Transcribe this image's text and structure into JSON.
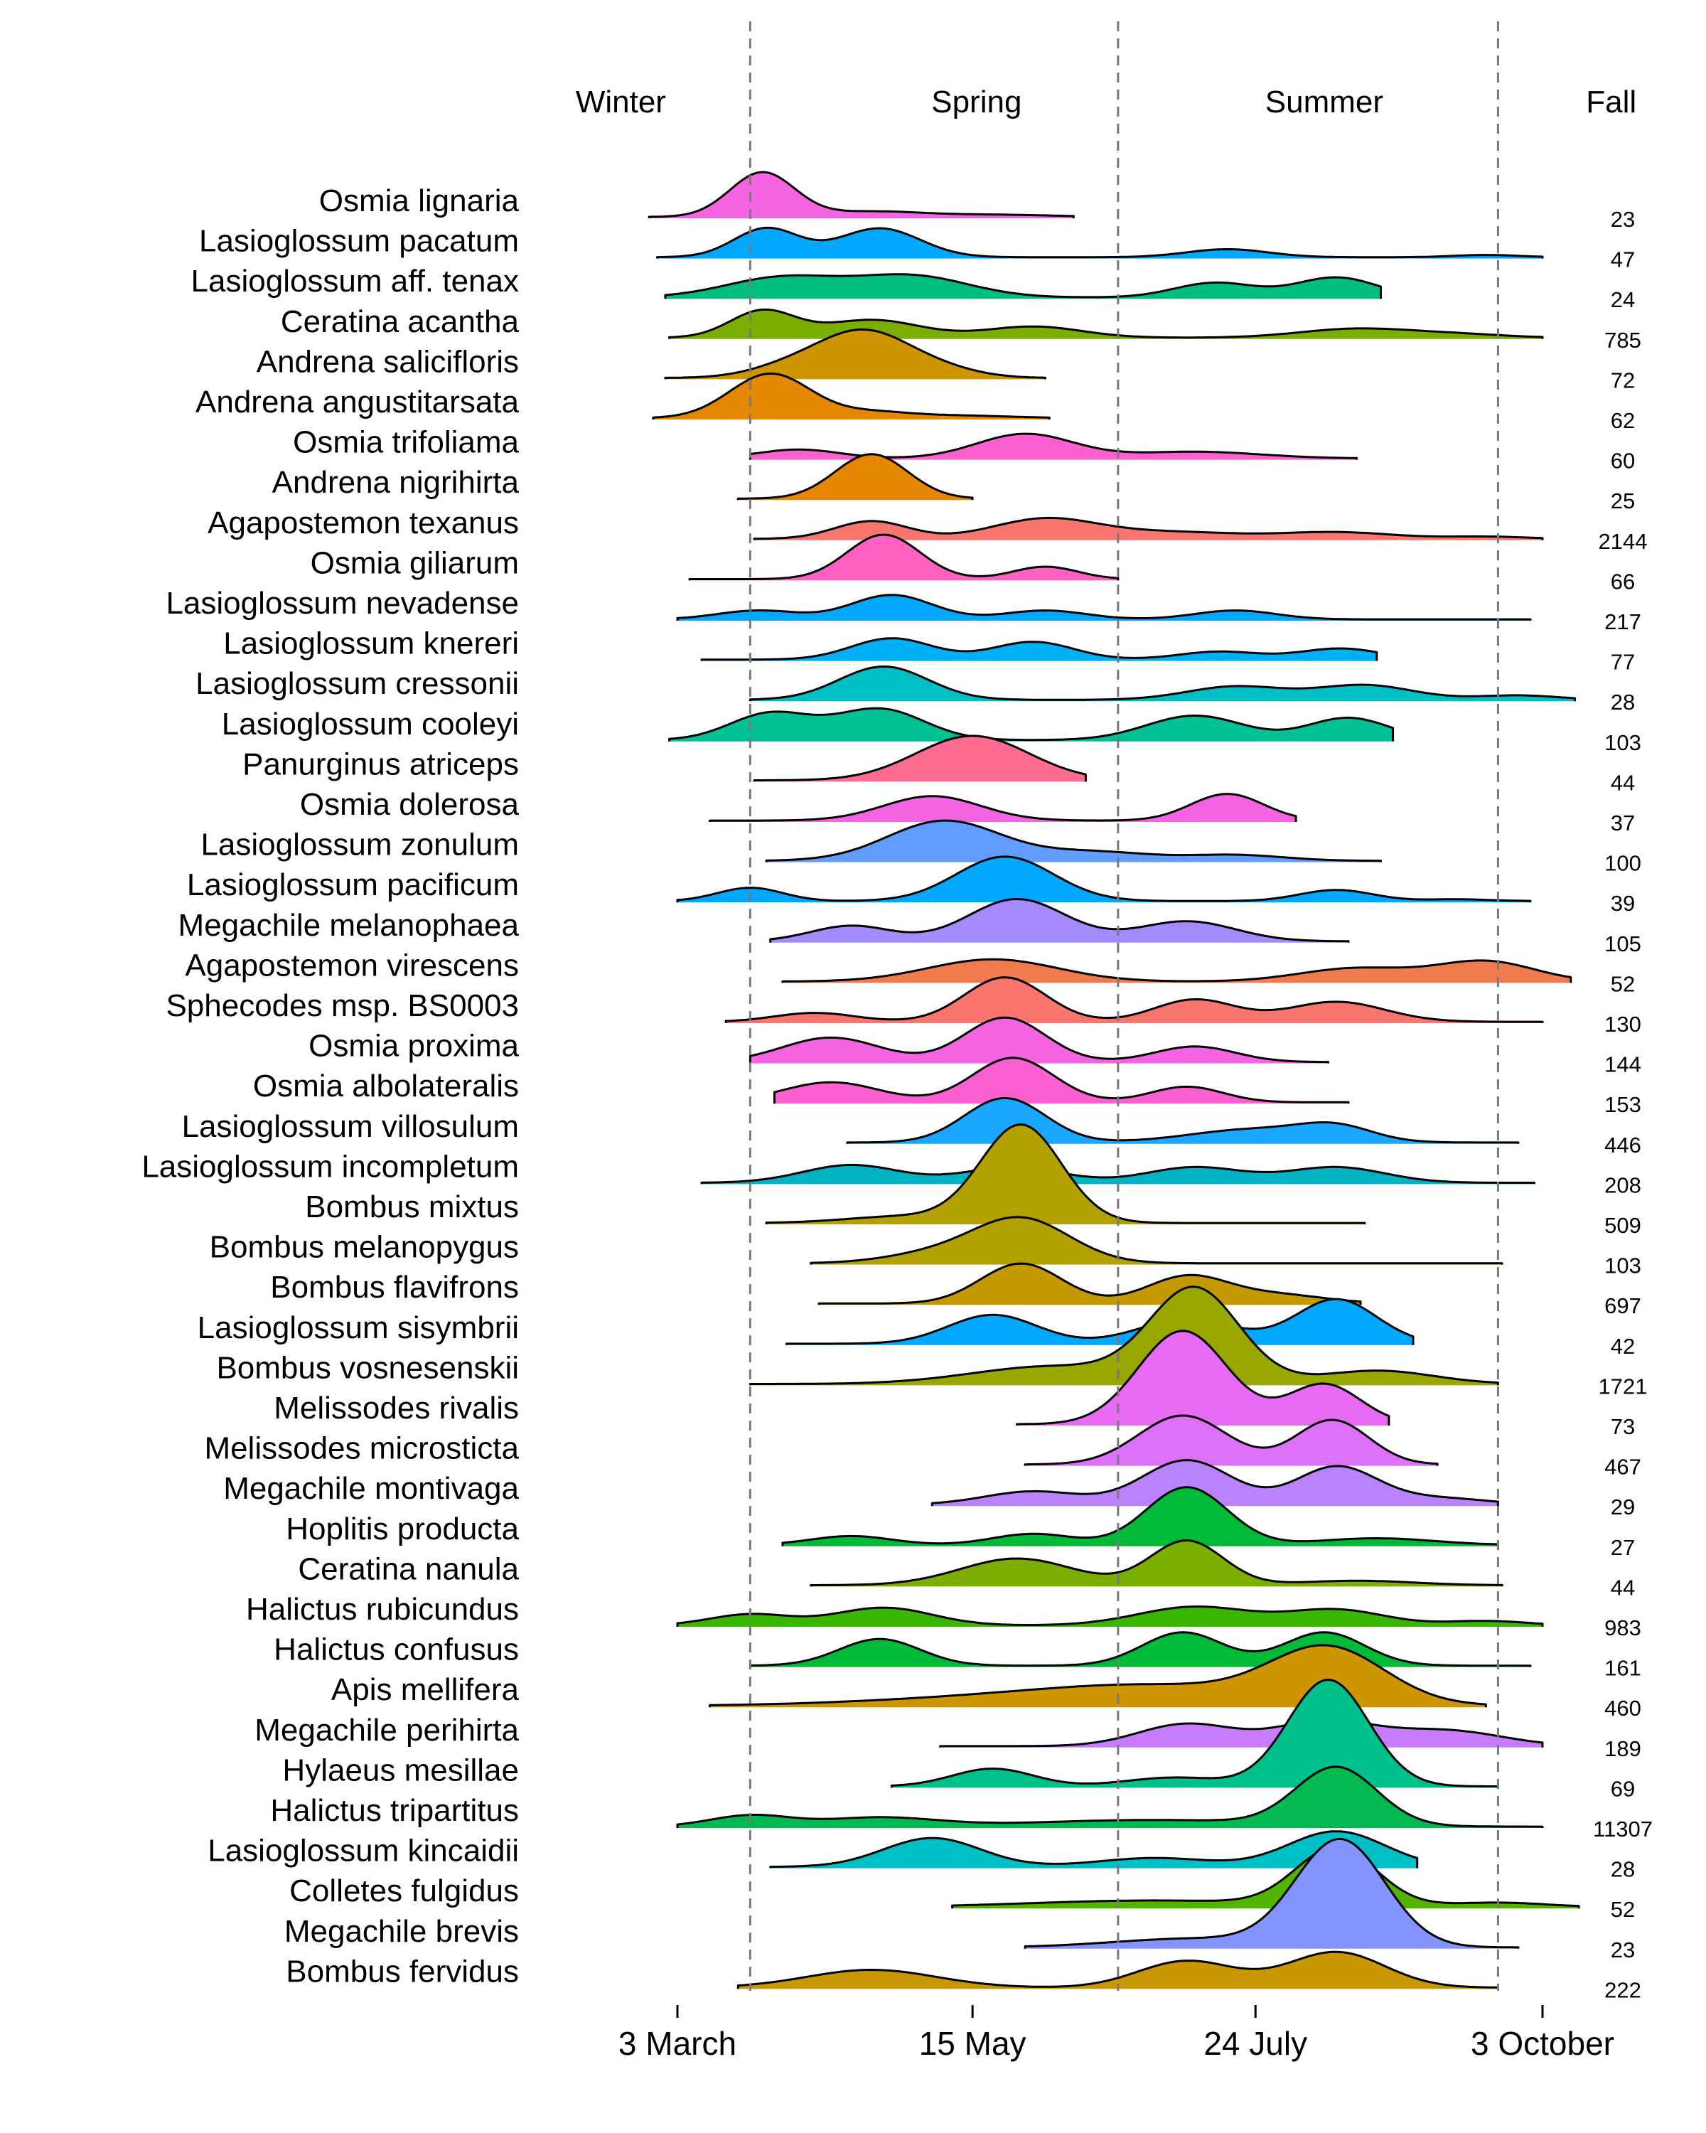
{
  "chart_data": {
    "type": "ridgeline",
    "x_axis": {
      "ticks": [
        {
          "day": 62,
          "label": "3 March"
        },
        {
          "day": 135,
          "label": "15 May"
        },
        {
          "day": 205,
          "label": "24 July"
        },
        {
          "day": 276,
          "label": "3 October"
        }
      ],
      "range_days": [
        62,
        276
      ]
    },
    "season_boundaries_day": [
      80,
      171,
      265
    ],
    "seasons": [
      {
        "name": "Winter",
        "day": 48
      },
      {
        "name": "Spring",
        "day": 136
      },
      {
        "name": "Summer",
        "day": 222
      },
      {
        "name": "Fall",
        "day": 293
      }
    ],
    "species": [
      {
        "name": "Osmia lignaria",
        "n": "23",
        "color": "#F564E3",
        "range": [
          55,
          160
        ],
        "peaks": [
          [
            83,
            8,
            1.0
          ],
          [
            110,
            12,
            0.12
          ],
          [
            140,
            15,
            0.05
          ]
        ]
      },
      {
        "name": "Lasioglossum pacatum",
        "n": "47",
        "color": "#00A9FF",
        "range": [
          57,
          276
        ],
        "peaks": [
          [
            84,
            8,
            0.65
          ],
          [
            112,
            10,
            0.65
          ],
          [
            198,
            10,
            0.18
          ],
          [
            262,
            8,
            0.05
          ]
        ]
      },
      {
        "name": "Lasioglossum aff. tenax",
        "n": "24",
        "color": "#00BF7D",
        "range": [
          59,
          236
        ],
        "peaks": [
          [
            88,
            14,
            0.45
          ],
          [
            120,
            14,
            0.48
          ],
          [
            195,
            10,
            0.33
          ],
          [
            225,
            10,
            0.45
          ]
        ]
      },
      {
        "name": "Ceratina acantha",
        "n": "785",
        "color": "#7CAE00",
        "range": [
          60,
          276
        ],
        "peaks": [
          [
            83,
            8,
            0.6
          ],
          [
            110,
            12,
            0.4
          ],
          [
            150,
            12,
            0.25
          ],
          [
            230,
            14,
            0.2
          ],
          [
            255,
            12,
            0.07
          ]
        ]
      },
      {
        "name": "Andrena salicifloris",
        "n": "72",
        "color": "#CD9600",
        "range": [
          59,
          153
        ],
        "peaks": [
          [
            90,
            10,
            0.25
          ],
          [
            108,
            11,
            1.0
          ],
          [
            126,
            10,
            0.2
          ]
        ]
      },
      {
        "name": "Andrena angustitarsata",
        "n": "62",
        "color": "#E58700",
        "range": [
          56,
          154
        ],
        "peaks": [
          [
            85,
            10,
            1.0
          ],
          [
            110,
            9,
            0.12
          ],
          [
            130,
            14,
            0.06
          ]
        ]
      },
      {
        "name": "Osmia trifoliama",
        "n": "60",
        "color": "#FD61D1",
        "range": [
          80,
          230
        ],
        "peaks": [
          [
            92,
            10,
            0.2
          ],
          [
            148,
            12,
            0.55
          ],
          [
            190,
            16,
            0.15
          ]
        ]
      },
      {
        "name": "Andrena nigrihirta",
        "n": "25",
        "color": "#E58700",
        "range": [
          77,
          135
        ],
        "peaks": [
          [
            110,
            9,
            1.0
          ]
        ]
      },
      {
        "name": "Agapostemon texanus",
        "n": "2144",
        "color": "#F8766D",
        "range": [
          81,
          276
        ],
        "peaks": [
          [
            110,
            9,
            0.4
          ],
          [
            153,
            13,
            0.45
          ],
          [
            185,
            16,
            0.15
          ],
          [
            225,
            14,
            0.15
          ],
          [
            262,
            10,
            0.05
          ]
        ]
      },
      {
        "name": "Osmia giliarum",
        "n": "66",
        "color": "#FF61C3",
        "range": [
          65,
          171
        ],
        "peaks": [
          [
            113,
            9,
            1.0
          ],
          [
            153,
            8,
            0.28
          ]
        ]
      },
      {
        "name": "Lasioglossum nevadense",
        "n": "217",
        "color": "#00A9FF",
        "range": [
          62,
          273
        ],
        "peaks": [
          [
            82,
            10,
            0.2
          ],
          [
            115,
            10,
            0.55
          ],
          [
            153,
            10,
            0.2
          ],
          [
            200,
            10,
            0.2
          ]
        ]
      },
      {
        "name": "Lasioglossum knereri",
        "n": "77",
        "color": "#00B0F6",
        "range": [
          68,
          235
        ],
        "peaks": [
          [
            115,
            10,
            0.48
          ],
          [
            150,
            10,
            0.4
          ],
          [
            196,
            10,
            0.18
          ],
          [
            226,
            10,
            0.25
          ]
        ]
      },
      {
        "name": "Lasioglossum cressonii",
        "n": "28",
        "color": "#00BFC4",
        "range": [
          80,
          284
        ],
        "peaks": [
          [
            113,
            11,
            0.75
          ],
          [
            200,
            12,
            0.3
          ],
          [
            232,
            12,
            0.33
          ],
          [
            270,
            10,
            0.1
          ]
        ]
      },
      {
        "name": "Lasioglossum cooleyi",
        "n": "103",
        "color": "#00C094",
        "range": [
          60,
          239
        ],
        "peaks": [
          [
            85,
            10,
            0.6
          ],
          [
            112,
            11,
            0.7
          ],
          [
            190,
            12,
            0.55
          ],
          [
            228,
            10,
            0.5
          ]
        ]
      },
      {
        "name": "Panurginus atriceps",
        "n": "44",
        "color": "#FF6C91",
        "range": [
          81,
          163
        ],
        "peaks": [
          [
            135,
            14,
            1.0
          ]
        ]
      },
      {
        "name": "Osmia dolerosa",
        "n": "37",
        "color": "#F564E3",
        "range": [
          70,
          215
        ],
        "peaks": [
          [
            125,
            12,
            0.55
          ],
          [
            198,
            9,
            0.6
          ]
        ]
      },
      {
        "name": "Lasioglossum zonulum",
        "n": "100",
        "color": "#619CFF",
        "range": [
          84,
          236
        ],
        "peaks": [
          [
            128,
            14,
            0.9
          ],
          [
            165,
            14,
            0.2
          ],
          [
            200,
            12,
            0.13
          ]
        ]
      },
      {
        "name": "Lasioglossum pacificum",
        "n": "39",
        "color": "#00A9FF",
        "range": [
          62,
          273
        ],
        "peaks": [
          [
            80,
            8,
            0.3
          ],
          [
            143,
            12,
            1.0
          ],
          [
            225,
            9,
            0.25
          ],
          [
            255,
            8,
            0.04
          ]
        ]
      },
      {
        "name": "Megachile melanophaea",
        "n": "105",
        "color": "#A58AFF",
        "range": [
          85,
          228
        ],
        "peaks": [
          [
            105,
            10,
            0.35
          ],
          [
            146,
            12,
            0.95
          ],
          [
            188,
            12,
            0.45
          ]
        ]
      },
      {
        "name": "Agapostemon virescens",
        "n": "52",
        "color": "#F07B4F",
        "range": [
          88,
          283
        ],
        "peaks": [
          [
            140,
            16,
            0.5
          ],
          [
            230,
            14,
            0.3
          ],
          [
            262,
            12,
            0.45
          ]
        ]
      },
      {
        "name": "Sphecodes msp. BS0003",
        "n": "130",
        "color": "#F8766D",
        "range": [
          74,
          276
        ],
        "peaks": [
          [
            96,
            10,
            0.2
          ],
          [
            143,
            10,
            1.0
          ],
          [
            190,
            10,
            0.5
          ],
          [
            225,
            12,
            0.45
          ]
        ]
      },
      {
        "name": "Osmia proxima",
        "n": "144",
        "color": "#F564E3",
        "range": [
          80,
          223
        ],
        "peaks": [
          [
            100,
            12,
            0.55
          ],
          [
            143,
            10,
            1.0
          ],
          [
            190,
            10,
            0.35
          ]
        ]
      },
      {
        "name": "Osmia albolateralis",
        "n": "153",
        "color": "#FD61D1",
        "range": [
          86,
          228
        ],
        "peaks": [
          [
            100,
            12,
            0.45
          ],
          [
            145,
            10,
            1.0
          ],
          [
            188,
            9,
            0.35
          ]
        ]
      },
      {
        "name": "Lasioglossum villosulum",
        "n": "446",
        "color": "#1AA7FF",
        "range": [
          104,
          270
        ],
        "peaks": [
          [
            143,
            10,
            1.0
          ],
          [
            205,
            16,
            0.3
          ],
          [
            225,
            9,
            0.3
          ]
        ]
      },
      {
        "name": "Lasioglossum incompletum",
        "n": "208",
        "color": "#00B2C4",
        "range": [
          68,
          274
        ],
        "peaks": [
          [
            105,
            12,
            0.4
          ],
          [
            145,
            12,
            0.35
          ],
          [
            190,
            12,
            0.35
          ],
          [
            225,
            12,
            0.35
          ]
        ]
      },
      {
        "name": "Bombus mixtus",
        "n": "509",
        "color": "#B2A100",
        "range": [
          84,
          232
        ],
        "peaks": [
          [
            147,
            10,
            2.2
          ],
          [
            118,
            14,
            0.15
          ]
        ]
      },
      {
        "name": "Bombus melanopygus",
        "n": "103",
        "color": "#B2A100",
        "range": [
          95,
          266
        ],
        "peaks": [
          [
            147,
            12,
            1.0
          ],
          [
            125,
            12,
            0.2
          ]
        ]
      },
      {
        "name": "Bombus flavifrons",
        "n": "697",
        "color": "#C49A00",
        "range": [
          97,
          231
        ],
        "peaks": [
          [
            147,
            10,
            0.9
          ],
          [
            188,
            10,
            0.6
          ],
          [
            210,
            12,
            0.2
          ]
        ]
      },
      {
        "name": "Lasioglossum sisymbrii",
        "n": "42",
        "color": "#00A9FF",
        "range": [
          89,
          244
        ],
        "peaks": [
          [
            140,
            11,
            0.65
          ],
          [
            188,
            12,
            0.55
          ],
          [
            225,
            10,
            1.0
          ]
        ]
      },
      {
        "name": "Bombus vosnesenskii",
        "n": "1721",
        "color": "#99A800",
        "range": [
          80,
          265
        ],
        "peaks": [
          [
            190,
            11,
            2.1
          ],
          [
            155,
            20,
            0.4
          ],
          [
            235,
            14,
            0.3
          ]
        ]
      },
      {
        "name": "Melissodes rivalis",
        "n": "73",
        "color": "#E76BF3",
        "range": [
          146,
          238
        ],
        "peaks": [
          [
            187,
            11,
            2.1
          ],
          [
            222,
            9,
            0.9
          ]
        ]
      },
      {
        "name": "Melissodes microsticta",
        "n": "467",
        "color": "#DC71FA",
        "range": [
          148,
          250
        ],
        "peaks": [
          [
            187,
            11,
            1.1
          ],
          [
            224,
            9,
            1.0
          ]
        ]
      },
      {
        "name": "Megachile montivaga",
        "n": "29",
        "color": "#B983FF",
        "range": [
          125,
          265
        ],
        "peaks": [
          [
            188,
            11,
            1.0
          ],
          [
            225,
            10,
            0.85
          ],
          [
            150,
            12,
            0.3
          ],
          [
            250,
            12,
            0.15
          ]
        ]
      },
      {
        "name": "Hoplitis producta",
        "n": "27",
        "color": "#00BA38",
        "range": [
          88,
          265
        ],
        "peaks": [
          [
            188,
            10,
            1.3
          ],
          [
            105,
            10,
            0.2
          ],
          [
            150,
            10,
            0.25
          ],
          [
            235,
            14,
            0.15
          ]
        ]
      },
      {
        "name": "Ceratina nanula",
        "n": "44",
        "color": "#7CAE00",
        "range": [
          95,
          266
        ],
        "peaks": [
          [
            146,
            14,
            0.6
          ],
          [
            188,
            9,
            1.0
          ],
          [
            230,
            14,
            0.1
          ]
        ]
      },
      {
        "name": "Halictus rubicundus",
        "n": "983",
        "color": "#39B600",
        "range": [
          62,
          276
        ],
        "peaks": [
          [
            113,
            12,
            0.4
          ],
          [
            190,
            14,
            0.42
          ],
          [
            225,
            12,
            0.35
          ],
          [
            80,
            10,
            0.25
          ],
          [
            262,
            10,
            0.1
          ]
        ]
      },
      {
        "name": "Halictus confusus",
        "n": "161",
        "color": "#00BA38",
        "range": [
          80,
          273
        ],
        "peaks": [
          [
            112,
            10,
            0.6
          ],
          [
            187,
            10,
            0.75
          ],
          [
            222,
            10,
            0.75
          ]
        ]
      },
      {
        "name": "Apis mellifera",
        "n": "460",
        "color": "#CD9600",
        "range": [
          70,
          262
        ],
        "peaks": [
          [
            223,
            14,
            1.2
          ],
          [
            180,
            30,
            0.45
          ],
          [
            130,
            30,
            0.12
          ]
        ]
      },
      {
        "name": "Megachile perihirta",
        "n": "189",
        "color": "#C77CFF",
        "range": [
          127,
          276
        ],
        "peaks": [
          [
            188,
            12,
            0.5
          ],
          [
            222,
            12,
            0.55
          ],
          [
            252,
            14,
            0.35
          ]
        ]
      },
      {
        "name": "Hylaeus mesillae",
        "n": "69",
        "color": "#00C08B",
        "range": [
          115,
          265
        ],
        "peaks": [
          [
            223,
            10,
            2.4
          ],
          [
            140,
            10,
            0.4
          ],
          [
            185,
            12,
            0.2
          ]
        ]
      },
      {
        "name": "Halictus tripartitus",
        "n": "11307",
        "color": "#00BA4F",
        "range": [
          62,
          276
        ],
        "peaks": [
          [
            225,
            10,
            1.3
          ],
          [
            80,
            10,
            0.25
          ],
          [
            112,
            14,
            0.2
          ],
          [
            180,
            30,
            0.15
          ]
        ]
      },
      {
        "name": "Lasioglossum kincaidii",
        "n": "28",
        "color": "#00BFC4",
        "range": [
          85,
          245
        ],
        "peaks": [
          [
            125,
            12,
            0.65
          ],
          [
            180,
            14,
            0.2
          ],
          [
            225,
            12,
            0.8
          ]
        ]
      },
      {
        "name": "Colletes fulgidus",
        "n": "52",
        "color": "#53B400",
        "range": [
          130,
          285
        ],
        "peaks": [
          [
            225,
            10,
            1.3
          ],
          [
            180,
            30,
            0.15
          ],
          [
            265,
            12,
            0.1
          ]
        ]
      },
      {
        "name": "Megachile brevis",
        "n": "23",
        "color": "#8494FF",
        "range": [
          148,
          270
        ],
        "peaks": [
          [
            226,
            11,
            2.4
          ],
          [
            190,
            20,
            0.2
          ]
        ]
      },
      {
        "name": "Bombus fervidus",
        "n": "222",
        "color": "#C99800",
        "range": [
          77,
          265
        ],
        "peaks": [
          [
            110,
            16,
            0.4
          ],
          [
            188,
            12,
            0.6
          ],
          [
            225,
            12,
            0.8
          ]
        ]
      }
    ]
  }
}
